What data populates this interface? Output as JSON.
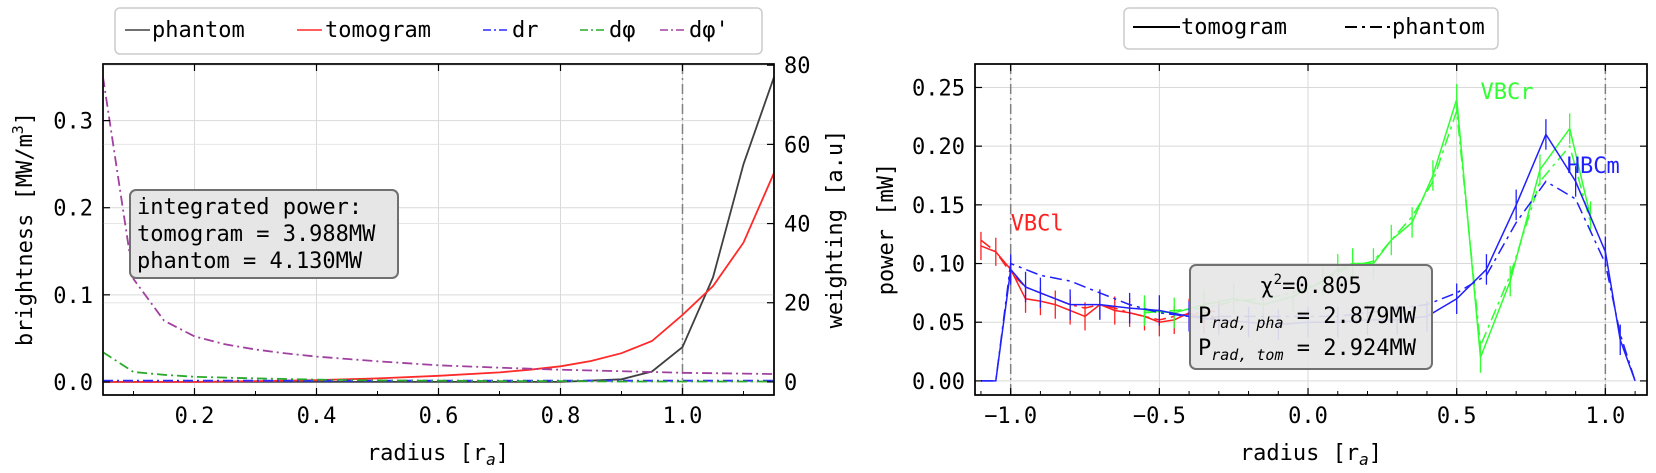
{
  "chart_data": [
    {
      "type": "line",
      "xlabel": "radius [r",
      "xlabel_sub": "a",
      "xlabel_end": "]",
      "ylabel": "brightness [MW/m",
      "ylabel_sup": "3",
      "ylabel_end": "]",
      "ylabel_right": "weighting [a.u]",
      "xlim": [
        0.05,
        1.15
      ],
      "ylim": [
        -0.015,
        0.365
      ],
      "ylim_right": [
        -3.3,
        80.3
      ],
      "xticks": [
        {
          "v": 0.2,
          "label": "0.2"
        },
        {
          "v": 0.4,
          "label": "0.4"
        },
        {
          "v": 0.6,
          "label": "0.6"
        },
        {
          "v": 0.8,
          "label": "0.8"
        },
        {
          "v": 1.0,
          "label": "1.0"
        }
      ],
      "yticks": [
        {
          "v": 0.0,
          "label": "0.0"
        },
        {
          "v": 0.1,
          "label": "0.1"
        },
        {
          "v": 0.2,
          "label": "0.2"
        },
        {
          "v": 0.3,
          "label": "0.3"
        }
      ],
      "yticks_right": [
        {
          "v": 0,
          "label": "0"
        },
        {
          "v": 20,
          "label": "20"
        },
        {
          "v": 40,
          "label": "40"
        },
        {
          "v": 60,
          "label": "60"
        },
        {
          "v": 80,
          "label": "80"
        }
      ],
      "vline": 1.0,
      "grid": true,
      "legend_position": "top, above plot",
      "series": [
        {
          "name": "phantom",
          "axis": "left",
          "color": "#404040",
          "dash": "",
          "x": [
            0.05,
            0.1,
            0.2,
            0.3,
            0.4,
            0.5,
            0.6,
            0.7,
            0.8,
            0.9,
            0.95,
            1.0,
            1.05,
            1.1,
            1.15
          ],
          "y": [
            0,
            0,
            0,
            0,
            0,
            0,
            0,
            0,
            0,
            0.003,
            0.012,
            0.04,
            0.12,
            0.25,
            0.35
          ]
        },
        {
          "name": "tomogram",
          "axis": "left",
          "color": "#ff2a2a",
          "dash": "",
          "x": [
            0.05,
            0.1,
            0.2,
            0.3,
            0.4,
            0.5,
            0.6,
            0.7,
            0.75,
            0.8,
            0.85,
            0.9,
            0.95,
            1.0,
            1.05,
            1.1,
            1.15
          ],
          "y": [
            0,
            0,
            0,
            0.001,
            0.002,
            0.004,
            0.007,
            0.011,
            0.014,
            0.018,
            0.024,
            0.033,
            0.047,
            0.077,
            0.11,
            0.16,
            0.24
          ]
        },
        {
          "name": "dr",
          "axis": "right",
          "color": "#2a2aff",
          "dash": "10,4,2,4",
          "x": [
            0.05,
            0.1,
            0.3,
            0.5,
            0.7,
            0.9,
            1.1,
            1.15
          ],
          "y": [
            0.3,
            0.3,
            0.3,
            0.3,
            0.3,
            0.3,
            0.3,
            0.3
          ]
        },
        {
          "name": "dφ",
          "axis": "right",
          "color": "#2aaa2a",
          "dash": "10,4,2,4",
          "x": [
            0.05,
            0.1,
            0.15,
            0.2,
            0.3,
            0.4,
            0.5,
            0.6,
            0.7,
            0.8,
            0.9,
            1.0,
            1.1,
            1.15
          ],
          "y": [
            7.5,
            2.5,
            1.8,
            1.3,
            0.9,
            0.6,
            0.4,
            0.3,
            0.2,
            0.2,
            0.1,
            0.1,
            0.1,
            0.1
          ]
        },
        {
          "name": "dφ'",
          "axis": "right",
          "color": "#a040a0",
          "dash": "10,4,2,4",
          "x": [
            0.05,
            0.1,
            0.15,
            0.2,
            0.25,
            0.3,
            0.35,
            0.4,
            0.5,
            0.6,
            0.7,
            0.8,
            0.9,
            1.0,
            1.1,
            1.15
          ],
          "y": [
            77,
            26,
            15.5,
            11.5,
            9.5,
            8.2,
            7.2,
            6.4,
            5.2,
            4.2,
            3.6,
            3.1,
            2.7,
            2.3,
            2.1,
            2.0
          ]
        }
      ],
      "annotation": {
        "line1": "integrated power:",
        "line2": "tomogram = 3.988MW",
        "line3": "phantom = 4.130MW"
      }
    },
    {
      "type": "line",
      "xlabel": "radius [r",
      "xlabel_sub": "a",
      "xlabel_end": "]",
      "ylabel": "power [mW]",
      "xlim": [
        -1.12,
        1.14
      ],
      "ylim": [
        -0.012,
        0.27
      ],
      "xticks": [
        {
          "v": -1.0,
          "label": "−1.0"
        },
        {
          "v": -0.5,
          "label": "−0.5"
        },
        {
          "v": 0.0,
          "label": "0.0"
        },
        {
          "v": 0.5,
          "label": "0.5"
        },
        {
          "v": 1.0,
          "label": "1.0"
        }
      ],
      "yticks": [
        {
          "v": 0.0,
          "label": "0.00"
        },
        {
          "v": 0.05,
          "label": "0.05"
        },
        {
          "v": 0.1,
          "label": "0.10"
        },
        {
          "v": 0.15,
          "label": "0.15"
        },
        {
          "v": 0.2,
          "label": "0.20"
        },
        {
          "v": 0.25,
          "label": "0.25"
        }
      ],
      "vlines": [
        -1.0,
        1.0
      ],
      "grid": true,
      "legend_position": "top, above plot",
      "legend": [
        {
          "name": "tomogram",
          "dash": ""
        },
        {
          "name": "phantom",
          "dash": "12,5,3,5"
        }
      ],
      "series": [
        {
          "name": "VBCl",
          "color": "#ff2020",
          "x": [
            -1.1,
            -1.05,
            -1.0,
            -0.95,
            -0.9,
            -0.85,
            -0.8,
            -0.75,
            -0.7,
            -0.65,
            -0.6,
            -0.55,
            -0.5,
            -0.45,
            -0.4,
            -0.35,
            -0.3
          ],
          "tomogram": [
            0.115,
            0.11,
            0.095,
            0.07,
            0.068,
            0.065,
            0.06,
            0.055,
            0.065,
            0.06,
            0.058,
            0.055,
            0.05,
            0.052,
            0.058,
            0.052,
            0.055
          ],
          "phantom": [
            0.12,
            0.11,
            0.092,
            0.08,
            0.075,
            0.07,
            0.065,
            0.062,
            0.065,
            0.062,
            0.058,
            0.055,
            0.052,
            0.055,
            0.057,
            0.058,
            0.06
          ],
          "err": 0.012
        },
        {
          "name": "VBCr",
          "color": "#30ff30",
          "x": [
            -0.55,
            -0.45,
            -0.35,
            -0.25,
            -0.15,
            -0.05,
            0.05,
            0.1,
            0.15,
            0.22,
            0.28,
            0.35,
            0.42,
            0.5,
            0.58,
            0.68,
            0.78,
            0.88,
            0.95
          ],
          "tomogram": [
            0.06,
            0.058,
            0.065,
            0.07,
            0.065,
            0.072,
            0.085,
            0.095,
            0.1,
            0.1,
            0.12,
            0.135,
            0.175,
            0.24,
            0.02,
            0.085,
            0.18,
            0.215,
            0.14
          ],
          "phantom": [
            0.058,
            0.06,
            0.062,
            0.068,
            0.07,
            0.075,
            0.085,
            0.093,
            0.098,
            0.102,
            0.12,
            0.14,
            0.17,
            0.23,
            0.03,
            0.09,
            0.17,
            0.2,
            0.135
          ],
          "err": 0.013
        },
        {
          "name": "HBCm",
          "color": "#2020ff",
          "x": [
            -1.1,
            -1.05,
            -1.0,
            -0.95,
            -0.9,
            -0.8,
            -0.7,
            -0.6,
            -0.5,
            -0.4,
            -0.3,
            -0.2,
            -0.1,
            0.0,
            0.1,
            0.2,
            0.3,
            0.4,
            0.5,
            0.6,
            0.7,
            0.8,
            0.9,
            1.0,
            1.05,
            1.1
          ],
          "tomogram": [
            0,
            0,
            0.095,
            0.08,
            0.075,
            0.065,
            0.065,
            0.062,
            0.06,
            0.055,
            0.052,
            0.05,
            0.048,
            0.05,
            0.05,
            0.052,
            0.052,
            0.055,
            0.07,
            0.095,
            0.15,
            0.21,
            0.17,
            0.11,
            0.035,
            0
          ],
          "phantom": [
            0,
            0,
            0.1,
            0.095,
            0.09,
            0.085,
            0.075,
            0.065,
            0.058,
            0.055,
            0.055,
            0.055,
            0.055,
            0.055,
            0.055,
            0.058,
            0.062,
            0.065,
            0.075,
            0.09,
            0.135,
            0.17,
            0.155,
            0.1,
            0.04,
            0
          ],
          "err": 0.013
        }
      ],
      "series_labels": [
        {
          "text": "VBCl",
          "color": "#ff2020",
          "x": -1.0,
          "y": 0.128
        },
        {
          "text": "VBCr",
          "color": "#30ff30",
          "x": 0.58,
          "y": 0.24
        },
        {
          "text": "HBCm",
          "color": "#2020ff",
          "x": 0.87,
          "y": 0.177
        }
      ],
      "annotation": {
        "chi_prefix": "χ",
        "chi_sup": "2",
        "chi_value": "=0.805",
        "pha_prefix": "P",
        "pha_sub": "rad, pha",
        "pha_value": " = 2.879MW",
        "tom_prefix": "P",
        "tom_sub": "rad, tom",
        "tom_value": " = 2.924MW"
      }
    }
  ]
}
